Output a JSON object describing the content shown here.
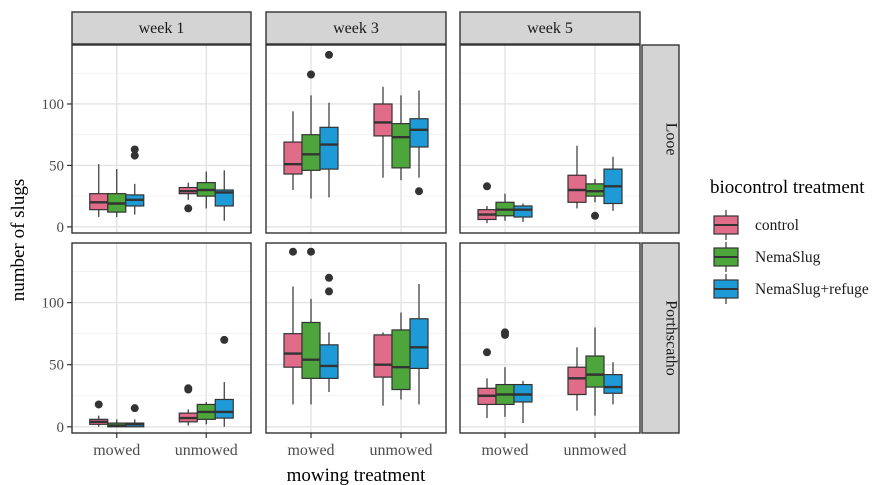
{
  "chart_data": {
    "type": "boxplot",
    "xlabel": "mowing treatment",
    "ylabel": "number of slugs",
    "categories": [
      "mowed",
      "unmowed"
    ],
    "column_facets": [
      "week 1",
      "week 3",
      "week 5"
    ],
    "row_facets": [
      "Looe",
      "Porthscatho"
    ],
    "y_ticks": [
      0,
      50,
      100
    ],
    "ylim": [
      -5,
      148
    ],
    "grid": true,
    "legend": {
      "title": "biocontrol treatment",
      "position": "right",
      "entries": [
        {
          "name": "control",
          "color": "#E06C8A"
        },
        {
          "name": "NemaSlug",
          "color": "#4DA63C"
        },
        {
          "name": "NemaSlug+refuge",
          "color": "#1E9BD7"
        }
      ]
    },
    "panels": [
      {
        "row": "Looe",
        "col": "week 1",
        "groups": [
          {
            "category": "mowed",
            "series": "control",
            "whisker_low": 8,
            "q1": 14,
            "median": 20,
            "q3": 27,
            "whisker_high": 51,
            "outliers": []
          },
          {
            "category": "mowed",
            "series": "NemaSlug",
            "whisker_low": 8,
            "q1": 12,
            "median": 19,
            "q3": 27,
            "whisker_high": 47,
            "outliers": []
          },
          {
            "category": "mowed",
            "series": "NemaSlug+refuge",
            "whisker_low": 10,
            "q1": 17,
            "median": 22,
            "q3": 26,
            "whisker_high": 35,
            "outliers": [
              58,
              63
            ]
          },
          {
            "category": "unmowed",
            "series": "control",
            "whisker_low": 22,
            "q1": 27,
            "median": 29,
            "q3": 32,
            "whisker_high": 36,
            "outliers": [
              15
            ]
          },
          {
            "category": "unmowed",
            "series": "NemaSlug",
            "whisker_low": 15,
            "q1": 25,
            "median": 30,
            "q3": 36,
            "whisker_high": 45,
            "outliers": []
          },
          {
            "category": "unmowed",
            "series": "NemaSlug+refuge",
            "whisker_low": 5,
            "q1": 17,
            "median": 28,
            "q3": 30,
            "whisker_high": 46,
            "outliers": []
          }
        ]
      },
      {
        "row": "Looe",
        "col": "week 3",
        "groups": [
          {
            "category": "mowed",
            "series": "control",
            "whisker_low": 30,
            "q1": 43,
            "median": 51,
            "q3": 69,
            "whisker_high": 94,
            "outliers": []
          },
          {
            "category": "mowed",
            "series": "NemaSlug",
            "whisker_low": 23,
            "q1": 46,
            "median": 59,
            "q3": 75,
            "whisker_high": 107,
            "outliers": [
              124
            ]
          },
          {
            "category": "mowed",
            "series": "NemaSlug+refuge",
            "whisker_low": 24,
            "q1": 47,
            "median": 67,
            "q3": 81,
            "whisker_high": 101,
            "outliers": [
              140
            ]
          },
          {
            "category": "unmowed",
            "series": "control",
            "whisker_low": 40,
            "q1": 74,
            "median": 85,
            "q3": 100,
            "whisker_high": 114,
            "outliers": []
          },
          {
            "category": "unmowed",
            "series": "NemaSlug",
            "whisker_low": 38,
            "q1": 48,
            "median": 73,
            "q3": 84,
            "whisker_high": 107,
            "outliers": []
          },
          {
            "category": "unmowed",
            "series": "NemaSlug+refuge",
            "whisker_low": 40,
            "q1": 65,
            "median": 79,
            "q3": 88,
            "whisker_high": 111,
            "outliers": [
              29
            ]
          }
        ]
      },
      {
        "row": "Looe",
        "col": "week 5",
        "groups": [
          {
            "category": "mowed",
            "series": "control",
            "whisker_low": 3,
            "q1": 6,
            "median": 10,
            "q3": 14,
            "whisker_high": 17,
            "outliers": [
              33
            ]
          },
          {
            "category": "mowed",
            "series": "NemaSlug",
            "whisker_low": 5,
            "q1": 9,
            "median": 14,
            "q3": 20,
            "whisker_high": 27,
            "outliers": []
          },
          {
            "category": "mowed",
            "series": "NemaSlug+refuge",
            "whisker_low": 4,
            "q1": 8,
            "median": 14,
            "q3": 17,
            "whisker_high": 19,
            "outliers": []
          },
          {
            "category": "unmowed",
            "series": "control",
            "whisker_low": 15,
            "q1": 20,
            "median": 30,
            "q3": 42,
            "whisker_high": 66,
            "outliers": []
          },
          {
            "category": "unmowed",
            "series": "NemaSlug",
            "whisker_low": 20,
            "q1": 25,
            "median": 29,
            "q3": 35,
            "whisker_high": 39,
            "outliers": [
              9
            ]
          },
          {
            "category": "unmowed",
            "series": "NemaSlug+refuge",
            "whisker_low": 13,
            "q1": 19,
            "median": 33,
            "q3": 47,
            "whisker_high": 57,
            "outliers": []
          }
        ]
      },
      {
        "row": "Porthscatho",
        "col": "week 1",
        "groups": [
          {
            "category": "mowed",
            "series": "control",
            "whisker_low": 0,
            "q1": 2,
            "median": 4,
            "q3": 6,
            "whisker_high": 9,
            "outliers": [
              18
            ]
          },
          {
            "category": "mowed",
            "series": "NemaSlug",
            "whisker_low": 0,
            "q1": 0,
            "median": 1,
            "q3": 3,
            "whisker_high": 6,
            "outliers": []
          },
          {
            "category": "mowed",
            "series": "NemaSlug+refuge",
            "whisker_low": 0,
            "q1": 0,
            "median": 2,
            "q3": 3,
            "whisker_high": 6,
            "outliers": [
              15
            ]
          },
          {
            "category": "unmowed",
            "series": "control",
            "whisker_low": 1,
            "q1": 4,
            "median": 7,
            "q3": 11,
            "whisker_high": 14,
            "outliers": [
              30,
              31
            ]
          },
          {
            "category": "unmowed",
            "series": "NemaSlug",
            "whisker_low": 2,
            "q1": 6,
            "median": 12,
            "q3": 18,
            "whisker_high": 20,
            "outliers": []
          },
          {
            "category": "unmowed",
            "series": "NemaSlug+refuge",
            "whisker_low": 0,
            "q1": 7,
            "median": 12,
            "q3": 22,
            "whisker_high": 36,
            "outliers": [
              70
            ]
          }
        ]
      },
      {
        "row": "Porthscatho",
        "col": "week 3",
        "groups": [
          {
            "category": "mowed",
            "series": "control",
            "whisker_low": 18,
            "q1": 48,
            "median": 59,
            "q3": 75,
            "whisker_high": 113,
            "outliers": [
              141
            ]
          },
          {
            "category": "mowed",
            "series": "NemaSlug",
            "whisker_low": 18,
            "q1": 39,
            "median": 54,
            "q3": 84,
            "whisker_high": 103,
            "outliers": [
              141
            ]
          },
          {
            "category": "mowed",
            "series": "NemaSlug+refuge",
            "whisker_low": 28,
            "q1": 39,
            "median": 49,
            "q3": 66,
            "whisker_high": 76,
            "outliers": [
              109,
              120
            ]
          },
          {
            "category": "unmowed",
            "series": "control",
            "whisker_low": 17,
            "q1": 40,
            "median": 50,
            "q3": 74,
            "whisker_high": 76,
            "outliers": []
          },
          {
            "category": "unmowed",
            "series": "NemaSlug",
            "whisker_low": 22,
            "q1": 30,
            "median": 48,
            "q3": 78,
            "whisker_high": 92,
            "outliers": []
          },
          {
            "category": "unmowed",
            "series": "NemaSlug+refuge",
            "whisker_low": 18,
            "q1": 47,
            "median": 64,
            "q3": 87,
            "whisker_high": 115,
            "outliers": []
          }
        ]
      },
      {
        "row": "Porthscatho",
        "col": "week 5",
        "groups": [
          {
            "category": "mowed",
            "series": "control",
            "whisker_low": 7,
            "q1": 18,
            "median": 25,
            "q3": 31,
            "whisker_high": 39,
            "outliers": [
              60
            ]
          },
          {
            "category": "mowed",
            "series": "NemaSlug",
            "whisker_low": 8,
            "q1": 18,
            "median": 26,
            "q3": 34,
            "whisker_high": 48,
            "outliers": [
              74,
              76
            ]
          },
          {
            "category": "mowed",
            "series": "NemaSlug+refuge",
            "whisker_low": 3,
            "q1": 20,
            "median": 26,
            "q3": 34,
            "whisker_high": 37,
            "outliers": []
          },
          {
            "category": "unmowed",
            "series": "control",
            "whisker_low": 13,
            "q1": 26,
            "median": 39,
            "q3": 48,
            "whisker_high": 64,
            "outliers": []
          },
          {
            "category": "unmowed",
            "series": "NemaSlug",
            "whisker_low": 9,
            "q1": 32,
            "median": 42,
            "q3": 57,
            "whisker_high": 80,
            "outliers": []
          },
          {
            "category": "unmowed",
            "series": "NemaSlug+refuge",
            "whisker_low": 18,
            "q1": 27,
            "median": 32,
            "q3": 42,
            "whisker_high": 52,
            "outliers": []
          }
        ]
      }
    ]
  }
}
